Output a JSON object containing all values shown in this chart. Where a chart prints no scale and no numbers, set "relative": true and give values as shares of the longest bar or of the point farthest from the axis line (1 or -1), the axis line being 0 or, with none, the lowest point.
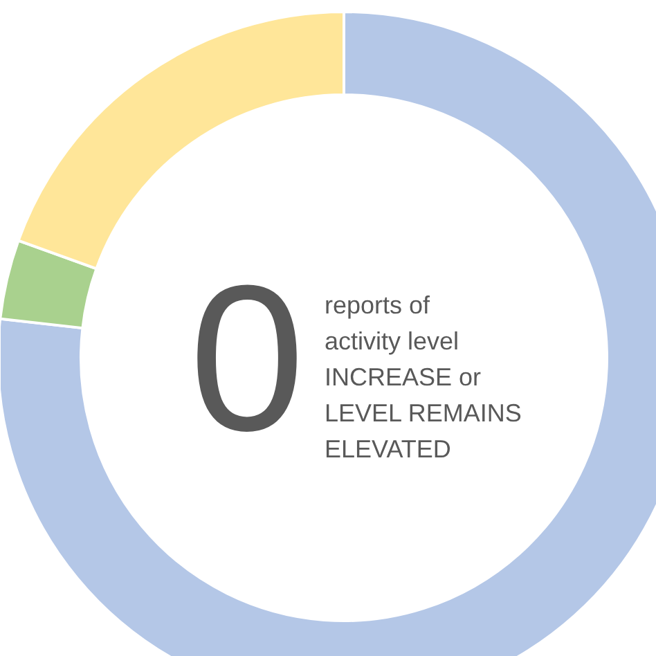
{
  "chart_data": {
    "type": "donut",
    "relative": true,
    "categories": [
      null,
      null,
      null
    ],
    "values": [
      76.8,
      3.7,
      19.5
    ],
    "colors": [
      "#b4c7e7",
      "#a9d18e",
      "#ffe699"
    ],
    "annotations": [
      "0",
      "reports of\nactivity level\nINCREASE or\nLEVEL REMAINS\nELEVATED"
    ]
  }
}
